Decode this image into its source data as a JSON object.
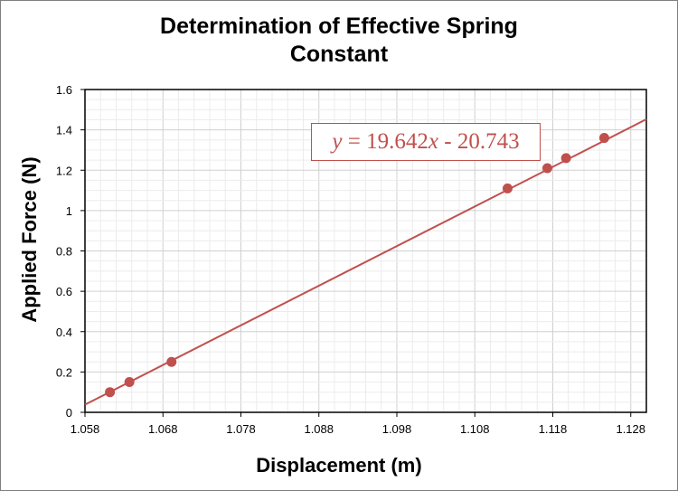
{
  "chart_data": {
    "type": "scatter",
    "title_line1": "Determination of Effective Spring",
    "title_line2": "Constant",
    "xlabel": "Displacement (m)",
    "ylabel": "Applied Force (N)",
    "xlim": [
      1.058,
      1.13
    ],
    "ylim": [
      0,
      1.6
    ],
    "xticks": [
      "1.058",
      "1.068",
      "1.078",
      "1.088",
      "1.098",
      "1.108",
      "1.118",
      "1.128"
    ],
    "xtick_values": [
      1.058,
      1.068,
      1.078,
      1.088,
      1.098,
      1.108,
      1.118,
      1.128
    ],
    "yticks": [
      "0",
      "0.2",
      "0.4",
      "0.6",
      "0.8",
      "1",
      "1.2",
      "1.4",
      "1.6"
    ],
    "ytick_values": [
      0,
      0.2,
      0.4,
      0.6,
      0.8,
      1.0,
      1.2,
      1.4,
      1.6
    ],
    "grid": true,
    "series": [
      {
        "points": [
          {
            "x": 1.0612,
            "y": 0.1
          },
          {
            "x": 1.0637,
            "y": 0.15
          },
          {
            "x": 1.0691,
            "y": 0.25
          },
          {
            "x": 1.1122,
            "y": 1.11
          },
          {
            "x": 1.1173,
            "y": 1.21
          },
          {
            "x": 1.1197,
            "y": 1.26
          },
          {
            "x": 1.1246,
            "y": 1.36
          }
        ],
        "color": "#c0504d"
      }
    ],
    "trendline": {
      "slope": 19.642,
      "intercept": -20.743,
      "color": "#c0504d",
      "equation": "= 19.642",
      "equation_y": "y",
      "equation_x": "x",
      "equation_tail": " - 20.743"
    }
  }
}
